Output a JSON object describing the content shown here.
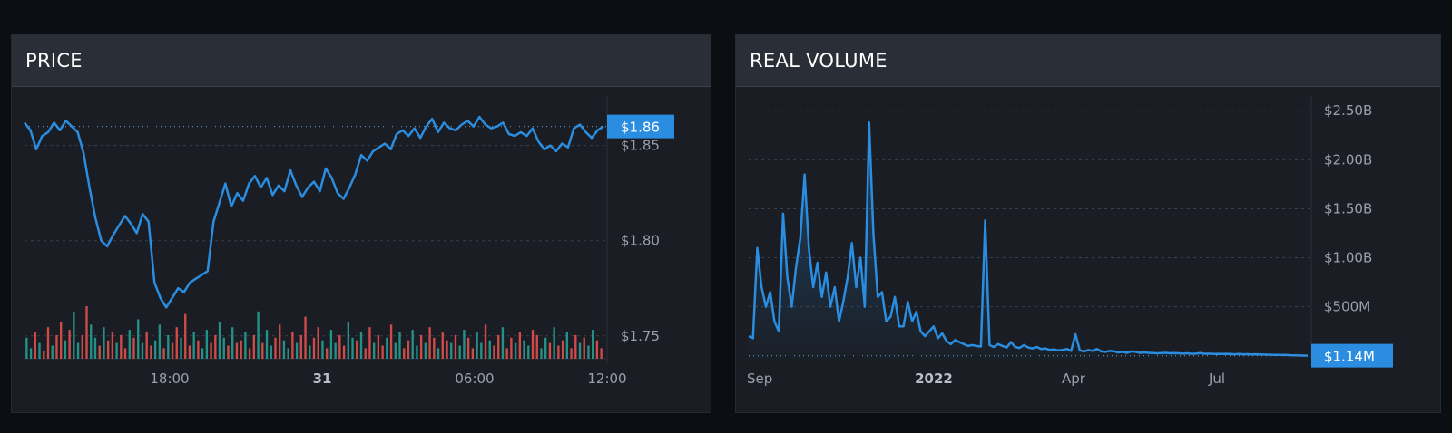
{
  "panels": {
    "price": {
      "title": "PRICE"
    },
    "volume": {
      "title": "REAL VOLUME"
    }
  },
  "colors": {
    "line": "#2a8de0",
    "vol_up": "#26a69a",
    "vol_down": "#ef5350",
    "badge": "#2a8de0"
  },
  "chart_data": [
    {
      "type": "line",
      "title": "PRICE",
      "x_ticks": [
        {
          "label": "18:00",
          "bold": false
        },
        {
          "label": "31",
          "bold": true
        },
        {
          "label": "06:00",
          "bold": false
        },
        {
          "label": "12:00",
          "bold": false
        }
      ],
      "y_ticks": [
        {
          "value": 1.85,
          "label": "$1.85"
        },
        {
          "value": 1.8,
          "label": "$1.80"
        },
        {
          "value": 1.75,
          "label": "$1.75"
        }
      ],
      "ylim": [
        1.738,
        1.876
      ],
      "last_value": 1.86,
      "last_label": "$1.86",
      "series": [
        {
          "values": [
            1.862,
            1.858,
            1.848,
            1.855,
            1.857,
            1.862,
            1.858,
            1.863,
            1.86,
            1.857,
            1.846,
            1.828,
            1.812,
            1.8,
            1.797,
            1.803,
            1.808,
            1.813,
            1.809,
            1.804,
            1.814,
            1.81,
            1.778,
            1.77,
            1.765,
            1.77,
            1.775,
            1.773,
            1.778,
            1.78,
            1.782,
            1.784,
            1.81,
            1.82,
            1.83,
            1.818,
            1.825,
            1.821,
            1.83,
            1.834,
            1.828,
            1.833,
            1.824,
            1.829,
            1.826,
            1.837,
            1.829,
            1.823,
            1.828,
            1.831,
            1.826,
            1.838,
            1.833,
            1.825,
            1.822,
            1.828,
            1.835,
            1.845,
            1.842,
            1.847,
            1.849,
            1.851,
            1.848,
            1.856,
            1.858,
            1.855,
            1.859,
            1.854,
            1.86,
            1.864,
            1.857,
            1.862,
            1.859,
            1.858,
            1.861,
            1.863,
            1.86,
            1.865,
            1.861,
            1.859,
            1.86,
            1.862,
            1.856,
            1.855,
            1.857,
            1.855,
            1.859,
            1.852,
            1.848,
            1.85,
            1.847,
            1.851,
            1.849,
            1.859,
            1.861,
            1.857,
            1.854,
            1.858,
            1.86
          ]
        }
      ],
      "volume_bars": [
        8,
        4,
        10,
        6,
        3,
        12,
        5,
        9,
        14,
        7,
        11,
        18,
        6,
        9,
        20,
        13,
        8,
        5,
        12,
        7,
        10,
        6,
        9,
        4,
        11,
        8,
        15,
        6,
        10,
        5,
        7,
        13,
        4,
        9,
        6,
        12,
        8,
        17,
        5,
        10,
        7,
        4,
        11,
        6,
        9,
        14,
        8,
        5,
        12,
        6,
        7,
        10,
        4,
        9,
        18,
        6,
        11,
        5,
        8,
        13,
        7,
        4,
        10,
        6,
        9,
        16,
        5,
        8,
        12,
        7,
        4,
        11,
        6,
        9,
        5,
        14,
        8,
        7,
        10,
        4,
        12,
        6,
        9,
        5,
        8,
        13,
        6,
        10,
        4,
        7,
        11,
        5,
        9,
        6,
        12,
        8,
        4,
        10,
        7,
        6,
        9,
        5,
        11,
        8,
        4,
        10,
        6,
        13,
        7,
        5,
        9,
        12,
        4,
        8,
        6,
        10,
        7,
        5,
        11,
        9,
        4,
        8,
        6,
        12,
        5,
        7,
        10,
        4,
        9,
        6,
        8,
        5,
        11,
        7,
        4
      ]
    },
    {
      "type": "area",
      "title": "REAL VOLUME",
      "x_ticks": [
        {
          "label": "Sep",
          "bold": false
        },
        {
          "label": "2022",
          "bold": true
        },
        {
          "label": "Apr",
          "bold": false
        },
        {
          "label": "Jul",
          "bold": false
        }
      ],
      "y_ticks": [
        {
          "value": 2500000000,
          "label": "$2.50B"
        },
        {
          "value": 2000000000,
          "label": "$2.00B"
        },
        {
          "value": 1500000000,
          "label": "$1.50B"
        },
        {
          "value": 1000000000,
          "label": "$1.00B"
        },
        {
          "value": 500000000,
          "label": "$500M"
        }
      ],
      "ylim": [
        -30000000,
        2650000000
      ],
      "last_value": 1140000,
      "last_label": "$1.14M",
      "series": [
        {
          "values": [
            200,
            180,
            1100,
            700,
            500,
            650,
            350,
            250,
            1450,
            800,
            500,
            900,
            1200,
            1850,
            1100,
            700,
            950,
            600,
            850,
            500,
            700,
            350,
            550,
            800,
            1150,
            700,
            1000,
            500,
            2380,
            1250,
            600,
            650,
            350,
            400,
            600,
            300,
            300,
            550,
            350,
            450,
            250,
            200,
            250,
            300,
            180,
            230,
            150,
            120,
            160,
            140,
            120,
            100,
            110,
            100,
            95,
            1380,
            110,
            90,
            120,
            100,
            85,
            140,
            90,
            80,
            110,
            85,
            75,
            90,
            70,
            75,
            60,
            65,
            55,
            60,
            70,
            50,
            220,
            55,
            45,
            60,
            50,
            70,
            45,
            40,
            50,
            45,
            35,
            40,
            30,
            45,
            40,
            30,
            35,
            30,
            28,
            25,
            28,
            30,
            25,
            28,
            25,
            22,
            25,
            20,
            22,
            28,
            20,
            22,
            18,
            20,
            18,
            20,
            18,
            15,
            18,
            15,
            16,
            14,
            15,
            13,
            12,
            12,
            10,
            10,
            8,
            10,
            6,
            5,
            3,
            2,
            1.14
          ]
        }
      ]
    }
  ]
}
